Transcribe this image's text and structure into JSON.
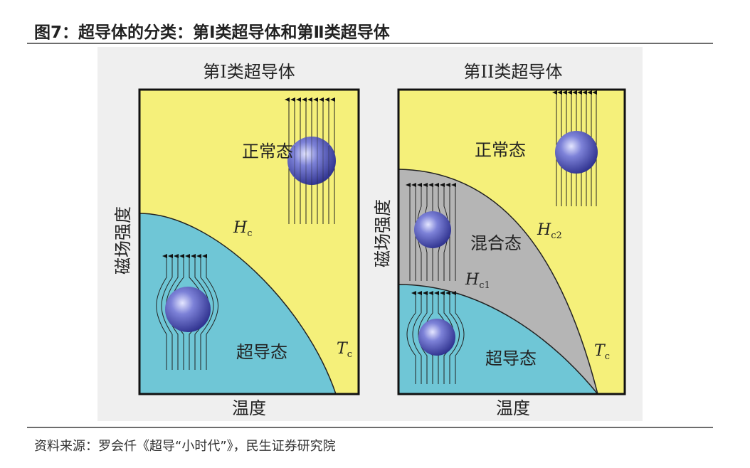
{
  "header": {
    "title": "图7：超导体的分类：第Ⅰ类超导体和第Ⅱ类超导体"
  },
  "footer": {
    "source": "资料来源：罗会仟《超导“小时代”》，民生证券研究院"
  },
  "panels": [
    {
      "title": "第I类超导体",
      "y_label": "磁场强度",
      "x_label": "温度",
      "normal_label": "正常态",
      "super_label": "超导态",
      "curve_label_main": "H",
      "curve_label_sub": "c",
      "tc_main": "T",
      "tc_sub": "c"
    },
    {
      "title": "第II类超导体",
      "y_label": "磁场强度",
      "x_label": "温度",
      "normal_label": "正常态",
      "mixed_label": "混合态",
      "super_label": "超导态",
      "hc1_main": "H",
      "hc1_sub": "c1",
      "hc2_main": "H",
      "hc2_sub": "c2",
      "tc_main": "T",
      "tc_sub": "c"
    }
  ],
  "colors": {
    "normal": "#f5f07a",
    "super": "#6fc6d6",
    "mixed": "#b5b5b5",
    "sphere": "#3b3fa3",
    "frame": "#111111"
  }
}
